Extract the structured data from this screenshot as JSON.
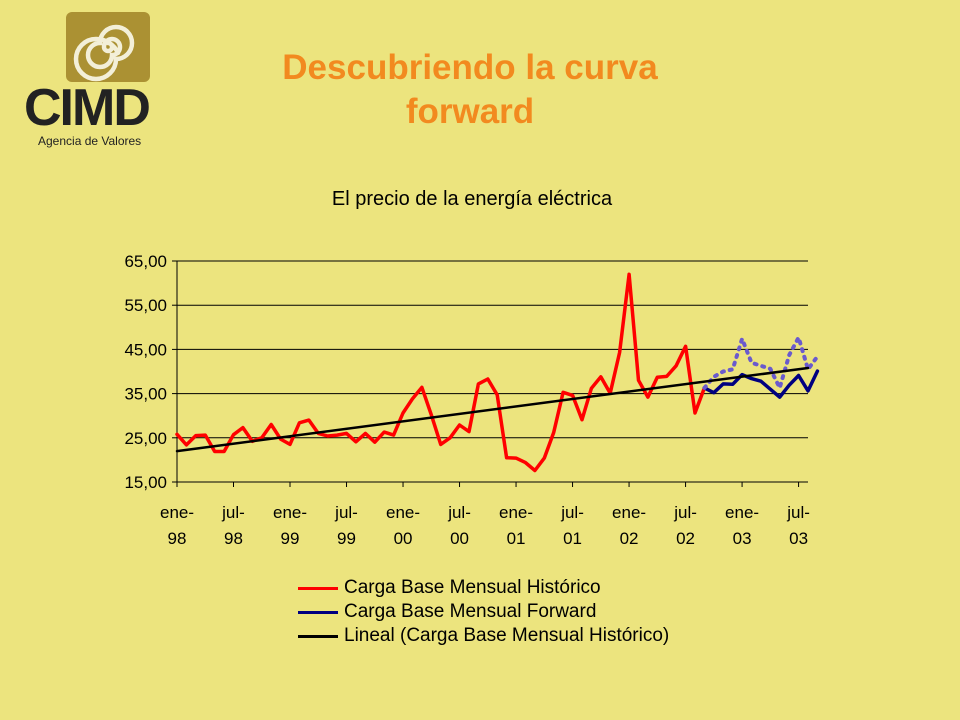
{
  "logo": {
    "name": "CIMD",
    "subtitle": "Agencia de Valores",
    "colors": {
      "mark": "#ab9133",
      "spiral": "#f3efd8",
      "text": "#222222"
    }
  },
  "page": {
    "title_line1": "Descubriendo la curva",
    "title_line2": "forward",
    "background": "#ece47e",
    "title_color": "#f28a1f"
  },
  "chart_data": {
    "type": "line",
    "title": "El precio de la energía eléctrica",
    "xlabel": "",
    "ylabel": "",
    "ylim": [
      15,
      65
    ],
    "yticks": [
      "65,00",
      "55,00",
      "45,00",
      "35,00",
      "25,00",
      "15,00"
    ],
    "grid": "horizontal",
    "legend_position": "bottom",
    "x_tick_labels": [
      [
        "ene-",
        "98"
      ],
      [
        "jul-",
        "98"
      ],
      [
        "ene-",
        "99"
      ],
      [
        "jul-",
        "99"
      ],
      [
        "ene-",
        "00"
      ],
      [
        "jul-",
        "00"
      ],
      [
        "ene-",
        "01"
      ],
      [
        "jul-",
        "01"
      ],
      [
        "ene-",
        "02"
      ],
      [
        "jul-",
        "02"
      ],
      [
        "ene-",
        "03"
      ],
      [
        "jul-",
        "03"
      ]
    ],
    "series": [
      {
        "name": "Carga Base Mensual Histórico",
        "color": "#ff0000",
        "start_index": 0,
        "values": [
          25.8,
          23.4,
          25.5,
          25.6,
          21.9,
          21.9,
          25.7,
          27.3,
          24.2,
          25.0,
          28.0,
          24.7,
          23.5,
          28.4,
          29.0,
          26.0,
          25.4,
          25.6,
          26.0,
          24.1,
          26.0,
          24.0,
          26.3,
          25.6,
          30.6,
          33.8,
          36.4,
          30.2,
          23.5,
          25.0,
          27.9,
          26.4,
          37.2,
          38.3,
          34.7,
          20.5,
          20.4,
          19.4,
          17.6,
          20.4,
          26.2,
          35.3,
          34.6,
          29.1,
          36.2,
          38.8,
          35.1,
          44.3,
          62.0,
          38.0,
          34.2,
          38.7,
          38.9,
          41.3,
          45.7,
          30.6,
          36.3
        ]
      },
      {
        "name": "Carga Base Mensual Forward",
        "color": "#000080",
        "start_index": 56,
        "values": [
          36.3,
          35.2,
          37.2,
          37.1,
          39.3,
          38.4,
          37.8,
          36.0,
          34.2,
          36.9,
          39.1,
          35.6,
          40.1
        ]
      },
      {
        "name": "",
        "color": "#6a5acd",
        "dashed": true,
        "in_legend": false,
        "start_index": 56,
        "values": [
          36.3,
          38.8,
          40.0,
          40.5,
          47.4,
          42.0,
          41.3,
          40.6,
          36.3,
          43.7,
          47.7,
          40.5,
          43.4
        ]
      },
      {
        "name": "Lineal (Carga Base Mensual Histórico)",
        "color": "#000000",
        "trend": true,
        "start_index": 0,
        "values": [
          22.0,
          40.8
        ],
        "end_index": 68
      }
    ]
  }
}
